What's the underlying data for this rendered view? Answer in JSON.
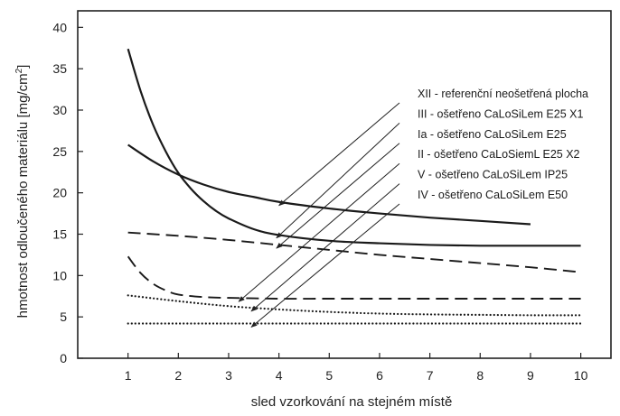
{
  "chart_data": {
    "type": "line",
    "title": "",
    "xlabel": "sled vzorkování na stejném místě",
    "ylabel": "hmotnost odloučeného materiálu [mg/cm",
    "ylabel_superscript": "2",
    "ylabel_suffix": "]",
    "xlim": [
      0,
      10.6
    ],
    "ylim": [
      0,
      42
    ],
    "xticks": [
      1,
      2,
      3,
      4,
      5,
      6,
      7,
      8,
      9,
      10
    ],
    "yticks": [
      0,
      5,
      10,
      15,
      20,
      25,
      30,
      35,
      40
    ],
    "grid": false,
    "series": [
      {
        "name": "XII - referenční neošetřená plocha",
        "style": "solid",
        "x": [
          1,
          1.5,
          2,
          2.5,
          3,
          3.5,
          4,
          5,
          6,
          7,
          8,
          9
        ],
        "y": [
          25.8,
          23.8,
          22.2,
          21.0,
          20.1,
          19.5,
          18.9,
          18.1,
          17.5,
          17.0,
          16.6,
          16.2
        ],
        "label_x": 4.0
      },
      {
        "name": "III - ošetřeno CaLoSiLem E25 X1",
        "style": "solid",
        "x": [
          1,
          1.25,
          1.5,
          1.75,
          2,
          2.25,
          2.5,
          2.75,
          3,
          3.5,
          4,
          5,
          6,
          7,
          8,
          9,
          10
        ],
        "y": [
          37.4,
          32.3,
          28.2,
          25.0,
          22.4,
          20.5,
          19.0,
          17.8,
          16.9,
          15.6,
          14.9,
          14.2,
          13.9,
          13.7,
          13.6,
          13.6,
          13.6
        ],
        "label_x": 3.95
      },
      {
        "name": "Ia - ošetřeno CaLoSiLem E25",
        "style": "dashed",
        "x": [
          1,
          2,
          3,
          4,
          5,
          6,
          7,
          8,
          9,
          10
        ],
        "y": [
          15.2,
          14.8,
          14.3,
          13.7,
          13.1,
          12.5,
          12.0,
          11.5,
          11.0,
          10.4
        ],
        "label_x": 3.95
      },
      {
        "name": "II - ošetřeno CaLoSiemL E25 X2",
        "style": "dashed",
        "x": [
          1,
          1.25,
          1.5,
          1.75,
          2,
          2.5,
          3,
          3.5,
          4,
          5,
          6,
          7,
          8,
          9,
          10
        ],
        "y": [
          12.3,
          10.3,
          9.0,
          8.2,
          7.7,
          7.4,
          7.3,
          7.25,
          7.2,
          7.2,
          7.2,
          7.2,
          7.2,
          7.2,
          7.2
        ],
        "label_x": 3.2
      },
      {
        "name": "V - ošetřeno CaLoSiLem IP25",
        "style": "dotted",
        "x": [
          1,
          2,
          3,
          4,
          5,
          6,
          7,
          8,
          9,
          10
        ],
        "y": [
          7.6,
          6.9,
          6.3,
          5.9,
          5.6,
          5.4,
          5.3,
          5.25,
          5.2,
          5.2
        ],
        "label_x": 3.45
      },
      {
        "name": "IV - ošetřeno CaLoSiLem E50",
        "style": "dotted",
        "x": [
          1,
          2,
          3,
          4,
          5,
          6,
          7,
          8,
          9,
          10
        ],
        "y": [
          4.2,
          4.2,
          4.2,
          4.2,
          4.2,
          4.2,
          4.2,
          4.2,
          4.2,
          4.2
        ],
        "label_x": 3.45
      }
    ]
  }
}
